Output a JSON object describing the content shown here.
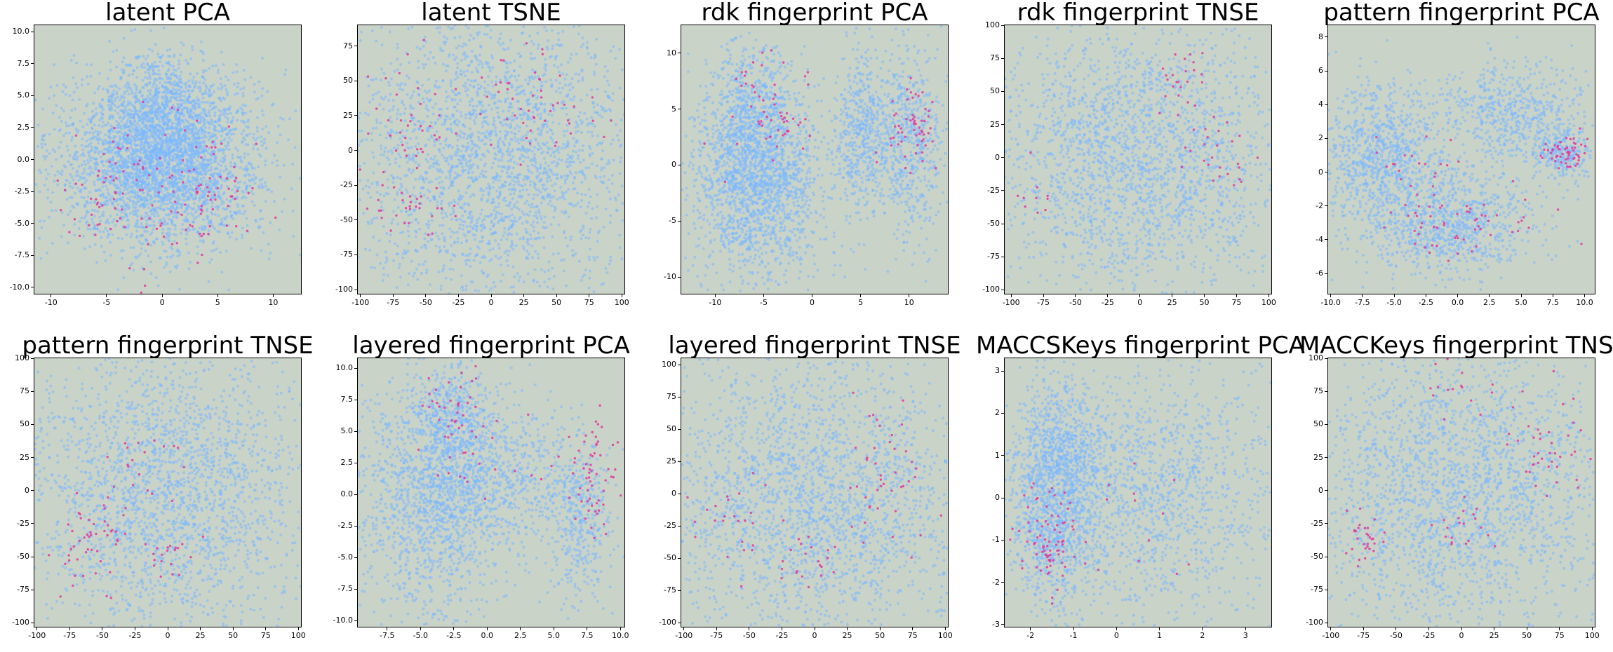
{
  "colors": {
    "background": "#cad3c8",
    "base_points": "#7ab8ff",
    "highlight_points": "#e040a0"
  },
  "chart_data": [
    {
      "type": "scatter",
      "title": "latent PCA",
      "xlabel": "",
      "ylabel": "",
      "xlim": [
        -11.5,
        12.5
      ],
      "ylim": [
        -10.5,
        10.5
      ],
      "xticks": [
        "-10",
        "-5",
        "0",
        "5",
        "10"
      ],
      "xtick_values": [
        -10,
        -5,
        0,
        5,
        10
      ],
      "yticks": [
        "-10.0",
        "-7.5",
        "-5.0",
        "-2.5",
        "0.0",
        "2.5",
        "5.0",
        "7.5",
        "10.0"
      ],
      "ytick_values": [
        -10,
        -7.5,
        -5,
        -2.5,
        0,
        2.5,
        5,
        7.5,
        10
      ],
      "series": [
        {
          "role": "base",
          "color": "#7ab8ff",
          "clusters": [
            [
              0,
              0.5,
              4.5,
              3.5,
              2600
            ],
            [
              0,
              3,
              2.5,
              2.5,
              600
            ],
            [
              0,
              -2,
              4.5,
              2.5,
              700
            ]
          ]
        },
        {
          "role": "highlight",
          "color": "#e040a0",
          "clusters": [
            [
              -4,
              -2.5,
              2.5,
              2,
              50
            ],
            [
              4,
              -2,
              2.5,
              2,
              50
            ],
            [
              0,
              -5,
              4,
              2,
              30
            ],
            [
              0,
              1.5,
              3,
              1.5,
              20
            ]
          ]
        }
      ]
    },
    {
      "type": "scatter",
      "title": "latent TSNE",
      "xlabel": "",
      "ylabel": "",
      "xlim": [
        -102,
        102
      ],
      "ylim": [
        -103,
        90
      ],
      "xticks": [
        "-100",
        "-75",
        "-50",
        "-25",
        "0",
        "25",
        "50",
        "75",
        "100"
      ],
      "xtick_values": [
        -100,
        -75,
        -50,
        -25,
        0,
        25,
        50,
        75,
        100
      ],
      "yticks": [
        "-100",
        "-75",
        "-50",
        "-25",
        "0",
        "25",
        "50",
        "75"
      ],
      "ytick_values": [
        -100,
        -75,
        -50,
        -25,
        0,
        25,
        50,
        75
      ],
      "series": [
        {
          "role": "base",
          "color": "#7ab8ff",
          "clusters": [
            [
              0,
              -5,
              60,
              55,
              2600
            ]
          ]
        },
        {
          "role": "highlight",
          "color": "#e040a0",
          "clusters": [
            [
              -60,
              15,
              15,
              20,
              40
            ],
            [
              -60,
              -40,
              15,
              10,
              30
            ],
            [
              50,
              20,
              25,
              15,
              30
            ],
            [
              0,
              50,
              25,
              15,
              20
            ]
          ]
        }
      ]
    },
    {
      "type": "scatter",
      "title": "rdk fingerprint PCA",
      "xlabel": "",
      "ylabel": "",
      "xlim": [
        -13.5,
        14
      ],
      "ylim": [
        -11.5,
        12.5
      ],
      "xticks": [
        "-10",
        "-5",
        "0",
        "5",
        "10"
      ],
      "xtick_values": [
        -10,
        -5,
        0,
        5,
        10
      ],
      "yticks": [
        "-10",
        "-5",
        "0",
        "5",
        "10"
      ],
      "ytick_values": [
        -10,
        -5,
        0,
        5,
        10
      ],
      "series": [
        {
          "role": "base",
          "color": "#7ab8ff",
          "clusters": [
            [
              -6,
              4,
              2.5,
              3.5,
              700
            ],
            [
              -5.5,
              -2,
              3.5,
              4,
              1600
            ],
            [
              5,
              3,
              1.5,
              4,
              500
            ],
            [
              10,
              2,
              1.8,
              4.5,
              600
            ]
          ]
        },
        {
          "role": "highlight",
          "color": "#e040a0",
          "clusters": [
            [
              -5,
              6,
              2,
              3,
              40
            ],
            [
              -3,
              3.5,
              1.5,
              1,
              20
            ],
            [
              10,
              3,
              1.5,
              2,
              60
            ]
          ]
        }
      ]
    },
    {
      "type": "scatter",
      "title": "rdk fingerprint TNSE",
      "xlabel": "",
      "ylabel": "",
      "xlim": [
        -105,
        102
      ],
      "ylim": [
        -103,
        100
      ],
      "xticks": [
        "-100",
        "-75",
        "-50",
        "-25",
        "0",
        "25",
        "50",
        "75",
        "100"
      ],
      "xtick_values": [
        -100,
        -75,
        -50,
        -25,
        0,
        25,
        50,
        75,
        100
      ],
      "yticks": [
        "-100",
        "-75",
        "-50",
        "-25",
        "0",
        "25",
        "50",
        "75",
        "100"
      ],
      "ytick_values": [
        -100,
        -75,
        -50,
        -25,
        0,
        25,
        50,
        75,
        100
      ],
      "series": [
        {
          "role": "base",
          "color": "#7ab8ff",
          "clusters": [
            [
              0,
              0,
              60,
              55,
              2400
            ]
          ]
        },
        {
          "role": "highlight",
          "color": "#e040a0",
          "clusters": [
            [
              30,
              60,
              10,
              10,
              20
            ],
            [
              60,
              10,
              20,
              20,
              30
            ],
            [
              -80,
              -25,
              10,
              10,
              10
            ]
          ]
        }
      ]
    },
    {
      "type": "scatter",
      "title": "pattern fingerprint PCA",
      "xlabel": "",
      "ylabel": "",
      "xlim": [
        -10.2,
        10.8
      ],
      "ylim": [
        -7.2,
        8.7
      ],
      "xticks": [
        "-10.0",
        "-7.5",
        "-5.0",
        "-2.5",
        "0.0",
        "2.5",
        "5.0",
        "7.5",
        "10.0"
      ],
      "xtick_values": [
        -10,
        -7.5,
        -5,
        -2.5,
        0,
        2.5,
        5,
        7.5,
        10
      ],
      "yticks": [
        "-6",
        "-4",
        "-2",
        "0",
        "2",
        "4",
        "6",
        "8"
      ],
      "ytick_values": [
        -6,
        -4,
        -2,
        0,
        2,
        4,
        6,
        8
      ],
      "series": [
        {
          "role": "base",
          "color": "#7ab8ff",
          "clusters": [
            [
              -6,
              1,
              2.5,
              2,
              900
            ],
            [
              -1,
              -3,
              3.5,
              1.5,
              900
            ],
            [
              4,
              3.5,
              3,
              1.5,
              600
            ],
            [
              8,
              1.2,
              1.2,
              0.8,
              250
            ]
          ]
        },
        {
          "role": "highlight",
          "color": "#e040a0",
          "clusters": [
            [
              8.5,
              1.2,
              1,
              0.5,
              60
            ],
            [
              0,
              -3,
              3,
              1,
              60
            ],
            [
              -4,
              0.5,
              2,
              1,
              20
            ]
          ]
        }
      ]
    },
    {
      "type": "scatter",
      "title": "pattern fingerprint TNSE",
      "xlabel": "",
      "ylabel": "",
      "xlim": [
        -102,
        102
      ],
      "ylim": [
        -103,
        100
      ],
      "xticks": [
        "-100",
        "-75",
        "-50",
        "-25",
        "0",
        "25",
        "50",
        "75",
        "100"
      ],
      "xtick_values": [
        -100,
        -75,
        -50,
        -25,
        0,
        25,
        50,
        75,
        100
      ],
      "yticks": [
        "-100",
        "-75",
        "-50",
        "-25",
        "0",
        "25",
        "50",
        "75",
        "100"
      ],
      "ytick_values": [
        -100,
        -75,
        -50,
        -25,
        0,
        25,
        50,
        75,
        100
      ],
      "series": [
        {
          "role": "base",
          "color": "#7ab8ff",
          "clusters": [
            [
              0,
              0,
              60,
              55,
              2400
            ]
          ]
        },
        {
          "role": "highlight",
          "color": "#e040a0",
          "clusters": [
            [
              -60,
              -40,
              15,
              20,
              50
            ],
            [
              0,
              -50,
              10,
              10,
              20
            ],
            [
              -20,
              15,
              20,
              15,
              20
            ]
          ]
        }
      ]
    },
    {
      "type": "scatter",
      "title": "layered fingerprint PCA",
      "xlabel": "",
      "ylabel": "",
      "xlim": [
        -9.7,
        10.3
      ],
      "ylim": [
        -10.5,
        10.8
      ],
      "xticks": [
        "-7.5",
        "-5.0",
        "-2.5",
        "0.0",
        "2.5",
        "5.0",
        "7.5",
        "10.0"
      ],
      "xtick_values": [
        -7.5,
        -5,
        -2.5,
        0,
        2.5,
        5,
        7.5,
        10
      ],
      "yticks": [
        "-10.0",
        "-7.5",
        "-5.0",
        "-2.5",
        "0.0",
        "2.5",
        "5.0",
        "7.5",
        "10.0"
      ],
      "ytick_values": [
        -10,
        -7.5,
        -5,
        -2.5,
        0,
        2.5,
        5,
        7.5,
        10
      ],
      "series": [
        {
          "role": "base",
          "color": "#7ab8ff",
          "clusters": [
            [
              -4,
              0,
              3,
              5,
              1600
            ],
            [
              -2.5,
              6,
              1.5,
              2.5,
              400
            ],
            [
              2,
              1,
              2.5,
              2.5,
              400
            ],
            [
              7,
              -2,
              1.2,
              3.5,
              400
            ]
          ]
        },
        {
          "role": "highlight",
          "color": "#e040a0",
          "clusters": [
            [
              8,
              1.5,
              0.8,
              2.5,
              60
            ],
            [
              -2.5,
              6.5,
              1.5,
              2,
              40
            ],
            [
              1,
              2,
              3,
              2,
              20
            ]
          ]
        }
      ]
    },
    {
      "type": "scatter",
      "title": "layered fingerprint TNSE",
      "xlabel": "",
      "ylabel": "",
      "xlim": [
        -102,
        102
      ],
      "ylim": [
        -103,
        105
      ],
      "xticks": [
        "-100",
        "-75",
        "-50",
        "-25",
        "0",
        "25",
        "50",
        "75",
        "100"
      ],
      "xtick_values": [
        -100,
        -75,
        -50,
        -25,
        0,
        25,
        50,
        75,
        100
      ],
      "yticks": [
        "-100",
        "-75",
        "-50",
        "-25",
        "0",
        "25",
        "50",
        "75",
        "100"
      ],
      "ytick_values": [
        -100,
        -75,
        -50,
        -25,
        0,
        25,
        50,
        75,
        100
      ],
      "series": [
        {
          "role": "base",
          "color": "#7ab8ff",
          "clusters": [
            [
              0,
              -5,
              60,
              55,
              2400
            ]
          ]
        },
        {
          "role": "highlight",
          "color": "#e040a0",
          "clusters": [
            [
              55,
              15,
              15,
              30,
              40
            ],
            [
              -60,
              -10,
              20,
              20,
              20
            ],
            [
              -10,
              -50,
              25,
              15,
              30
            ]
          ]
        }
      ]
    },
    {
      "type": "scatter",
      "title": "MACCSKeys fingerprint PCA",
      "xlabel": "",
      "ylabel": "",
      "xlim": [
        -2.6,
        3.6
      ],
      "ylim": [
        -3.05,
        3.3
      ],
      "xticks": [
        "-2",
        "-1",
        "0",
        "1",
        "2",
        "3"
      ],
      "xtick_values": [
        -2,
        -1,
        0,
        1,
        2,
        3
      ],
      "yticks": [
        "-3",
        "-2",
        "-1",
        "0",
        "1",
        "2",
        "3"
      ],
      "ytick_values": [
        -3,
        -2,
        -1,
        0,
        1,
        2,
        3
      ],
      "series": [
        {
          "role": "base",
          "color": "#7ab8ff",
          "clusters": [
            [
              -1.3,
              0.8,
              0.6,
              1,
              1100
            ],
            [
              -1.5,
              -1,
              0.5,
              0.8,
              500
            ],
            [
              1,
              0,
              1.5,
              1.5,
              1300
            ]
          ]
        },
        {
          "role": "highlight",
          "color": "#e040a0",
          "clusters": [
            [
              -1.5,
              -1,
              0.4,
              0.6,
              80
            ],
            [
              0.5,
              -0.5,
              1.2,
              1,
              15
            ]
          ]
        }
      ]
    },
    {
      "type": "scatter",
      "title": "MACCKeys fingerprint TNSE",
      "xlabel": "",
      "ylabel": "",
      "xlim": [
        -102,
        102
      ],
      "ylim": [
        -103,
        100
      ],
      "xticks": [
        "-100",
        "-75",
        "-50",
        "-25",
        "0",
        "25",
        "50",
        "75",
        "100"
      ],
      "xtick_values": [
        -100,
        -75,
        -50,
        -25,
        0,
        25,
        50,
        75,
        100
      ],
      "yticks": [
        "-100",
        "-75",
        "-50",
        "-25",
        "0",
        "25",
        "50",
        "75",
        "100"
      ],
      "ytick_values": [
        -100,
        -75,
        -50,
        -25,
        0,
        25,
        50,
        75,
        100
      ],
      "series": [
        {
          "role": "base",
          "color": "#7ab8ff",
          "clusters": [
            [
              0,
              0,
              60,
              55,
              2400
            ]
          ]
        },
        {
          "role": "highlight",
          "color": "#e040a0",
          "clusters": [
            [
              -75,
              -35,
              8,
              8,
              30
            ],
            [
              70,
              35,
              15,
              20,
              40
            ],
            [
              0,
              -25,
              10,
              10,
              20
            ],
            [
              0,
              75,
              15,
              10,
              15
            ]
          ]
        }
      ]
    }
  ]
}
